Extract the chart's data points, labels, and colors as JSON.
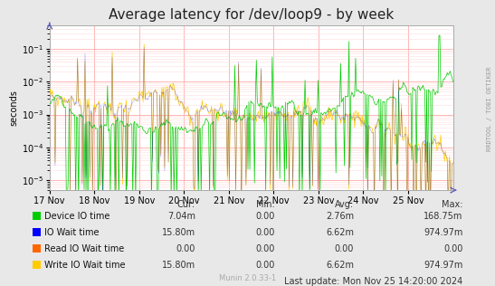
{
  "title": "Average latency for /dev/loop9 - by week",
  "ylabel": "seconds",
  "background_color": "#e8e8e8",
  "plot_bg_color": "#ffffff",
  "grid_color_major": "#ffaaaa",
  "grid_color_minor": "#ffdddd",
  "x_ticks_labels": [
    "17 Nov",
    "18 Nov",
    "19 Nov",
    "20 Nov",
    "21 Nov",
    "22 Nov",
    "23 Nov",
    "24 Nov",
    "25 Nov"
  ],
  "ylim_min": 5e-06,
  "ylim_max": 0.5,
  "series": [
    {
      "name": "Device IO time",
      "color": "#00cc00"
    },
    {
      "name": "IO Wait time",
      "color": "#0000ff"
    },
    {
      "name": "Read IO Wait time",
      "color": "#ff6600"
    },
    {
      "name": "Write IO Wait time",
      "color": "#ffcc00"
    }
  ],
  "legend_items": [
    {
      "label": "Device IO time",
      "color": "#00cc00"
    },
    {
      "label": "IO Wait time",
      "color": "#0000ff"
    },
    {
      "label": "Read IO Wait time",
      "color": "#ff6600"
    },
    {
      "label": "Write IO Wait time",
      "color": "#ffcc00"
    }
  ],
  "legend_cur": [
    "7.04m",
    "15.80m",
    "0.00",
    "15.80m"
  ],
  "legend_min": [
    "0.00",
    "0.00",
    "0.00",
    "0.00"
  ],
  "legend_avg": [
    "2.76m",
    "6.62m",
    "0.00",
    "6.62m"
  ],
  "legend_max": [
    "168.75m",
    "974.97m",
    "0.00",
    "974.97m"
  ],
  "footer_text": "Munin 2.0.33-1",
  "last_update": "Last update: Mon Nov 25 14:20:00 2024",
  "right_label": "RRDTOOL / TOBI OETIKER",
  "title_fontsize": 11,
  "axis_fontsize": 7,
  "legend_fontsize": 7
}
